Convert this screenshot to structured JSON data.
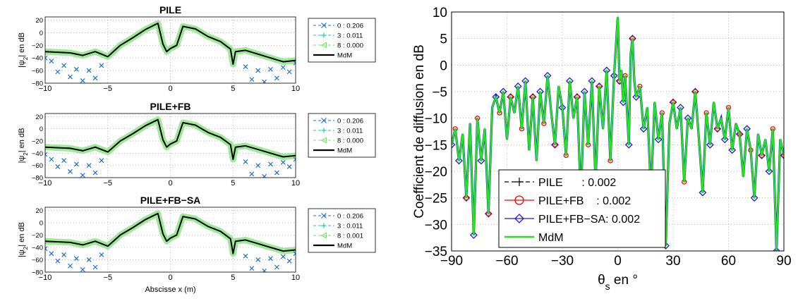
{
  "chart_data": [
    {
      "type": "line",
      "title": "PILE",
      "ylabel": "|ψ_2| en dB",
      "xlabel": "",
      "xlim": [
        -10,
        10
      ],
      "ylim": [
        -80,
        25
      ],
      "xticks": [
        "−10",
        "−5",
        "0",
        "5",
        "10"
      ],
      "yticks": [
        "20",
        "0",
        "−20",
        "−40",
        "−60",
        "−80"
      ],
      "grid": true,
      "legend": "outside-right",
      "series": [
        {
          "name": "0 : 0.206",
          "color": "#1f6fd6",
          "style": "dashed-x",
          "points": [
            [
              -10,
              -40
            ],
            [
              -9.5,
              -45
            ],
            [
              -9,
              -62
            ],
            [
              -8.5,
              -52
            ],
            [
              -8,
              -70
            ],
            [
              -7.5,
              -58
            ],
            [
              -7,
              -76
            ],
            [
              -6.5,
              -60
            ],
            [
              -6,
              -72
            ],
            [
              -5.5,
              -52
            ],
            [
              6,
              -54
            ],
            [
              6.5,
              -74
            ],
            [
              7,
              -60
            ],
            [
              7.5,
              -78
            ],
            [
              8,
              -58
            ],
            [
              8.5,
              -72
            ],
            [
              9,
              -55
            ],
            [
              9.5,
              -62
            ],
            [
              10,
              -48
            ]
          ]
        },
        {
          "name": "3 : 0.011",
          "color": "#19c7c9",
          "style": "dashed-plus",
          "points": []
        },
        {
          "name": "8 : 0.000",
          "color": "#7fdc7a",
          "style": "dashed-triangle",
          "points": []
        },
        {
          "name": "MdM",
          "color": "#000000",
          "style": "solid",
          "points": [
            [
              -10,
              -30
            ],
            [
              -8,
              -32
            ],
            [
              -7,
              -36
            ],
            [
              -6,
              -30
            ],
            [
              -5,
              -38
            ],
            [
              -4,
              -20
            ],
            [
              -3,
              -8
            ],
            [
              -2,
              5
            ],
            [
              -1,
              15
            ],
            [
              -0.6,
              -18
            ],
            [
              -0.3,
              -30
            ],
            [
              0,
              -25
            ],
            [
              0.5,
              -20
            ],
            [
              0.8,
              -2
            ],
            [
              1,
              10
            ],
            [
              2,
              6
            ],
            [
              3,
              -6
            ],
            [
              4,
              -14
            ],
            [
              4.8,
              -26
            ],
            [
              5,
              -50
            ],
            [
              5.2,
              -30
            ],
            [
              6,
              -28
            ],
            [
              7,
              -34
            ],
            [
              8,
              -40
            ],
            [
              9,
              -46
            ],
            [
              10,
              -44
            ]
          ]
        }
      ]
    },
    {
      "type": "line",
      "title": "PILE+FB",
      "ylabel": "|ψ_2| en dB",
      "xlabel": "",
      "xlim": [
        -10,
        10
      ],
      "ylim": [
        -80,
        25
      ],
      "xticks": [
        "−10",
        "−5",
        "0",
        "5",
        "10"
      ],
      "yticks": [
        "20",
        "0",
        "−20",
        "−40",
        "−60",
        "−80"
      ],
      "grid": true,
      "legend": "outside-right",
      "series": [
        {
          "name": "0 : 0.206",
          "color": "#1f6fd6",
          "style": "dashed-x",
          "points": [
            [
              -10,
              -42
            ],
            [
              -9.5,
              -50
            ],
            [
              -9,
              -62
            ],
            [
              -8.5,
              -52
            ],
            [
              -8,
              -70
            ],
            [
              -7.5,
              -58
            ],
            [
              -7,
              -76
            ],
            [
              -6.5,
              -60
            ],
            [
              -6,
              -72
            ],
            [
              -5.5,
              -52
            ],
            [
              6,
              -54
            ],
            [
              6.5,
              -74
            ],
            [
              7,
              -60
            ],
            [
              7.5,
              -78
            ],
            [
              8,
              -58
            ],
            [
              8.5,
              -72
            ],
            [
              9,
              -55
            ],
            [
              9.5,
              -62
            ],
            [
              10,
              -50
            ]
          ]
        },
        {
          "name": "3 : 0.011",
          "color": "#19c7c9",
          "style": "dashed-plus",
          "points": []
        },
        {
          "name": "8 : 0.000",
          "color": "#7fdc7a",
          "style": "dashed-triangle",
          "points": []
        },
        {
          "name": "MdM",
          "color": "#000000",
          "style": "solid",
          "points": [
            [
              -10,
              -30
            ],
            [
              -8,
              -32
            ],
            [
              -7,
              -36
            ],
            [
              -6,
              -30
            ],
            [
              -5,
              -38
            ],
            [
              -4,
              -20
            ],
            [
              -3,
              -8
            ],
            [
              -2,
              5
            ],
            [
              -1,
              15
            ],
            [
              -0.6,
              -18
            ],
            [
              -0.3,
              -30
            ],
            [
              0,
              -25
            ],
            [
              0.5,
              -20
            ],
            [
              0.8,
              -2
            ],
            [
              1,
              10
            ],
            [
              2,
              6
            ],
            [
              3,
              -6
            ],
            [
              4,
              -14
            ],
            [
              4.8,
              -26
            ],
            [
              5,
              -50
            ],
            [
              5.2,
              -30
            ],
            [
              6,
              -28
            ],
            [
              7,
              -34
            ],
            [
              8,
              -40
            ],
            [
              9,
              -46
            ],
            [
              10,
              -44
            ]
          ]
        }
      ]
    },
    {
      "type": "line",
      "title": "PILE+FB−SA",
      "ylabel": "|ψ_2| en dB",
      "xlabel": "Abscisse x (m)",
      "xlim": [
        -10,
        10
      ],
      "ylim": [
        -80,
        25
      ],
      "xticks": [
        "−10",
        "−5",
        "0",
        "5",
        "10"
      ],
      "yticks": [
        "20",
        "0",
        "−20",
        "−40",
        "−60",
        "−80"
      ],
      "grid": true,
      "legend": "outside-right",
      "series": [
        {
          "name": "0 : 0.206",
          "color": "#1f6fd6",
          "style": "dashed-x",
          "points": [
            [
              -10,
              -42
            ],
            [
              -9.5,
              -50
            ],
            [
              -9,
              -62
            ],
            [
              -8.5,
              -52
            ],
            [
              -8,
              -70
            ],
            [
              -7.5,
              -58
            ],
            [
              -7,
              -76
            ],
            [
              -6.5,
              -60
            ],
            [
              -6,
              -72
            ],
            [
              -5.5,
              -52
            ],
            [
              6,
              -54
            ],
            [
              6.5,
              -74
            ],
            [
              7,
              -60
            ],
            [
              7.5,
              -78
            ],
            [
              8,
              -58
            ],
            [
              8.5,
              -72
            ],
            [
              9,
              -55
            ],
            [
              9.5,
              -62
            ],
            [
              10,
              -50
            ]
          ]
        },
        {
          "name": "3 : 0.011",
          "color": "#19c7c9",
          "style": "dashed-plus",
          "points": []
        },
        {
          "name": "8 : 0.001",
          "color": "#7fdc7a",
          "style": "dashed-triangle",
          "points": []
        },
        {
          "name": "MdM",
          "color": "#000000",
          "style": "solid",
          "points": [
            [
              -10,
              -30
            ],
            [
              -8,
              -32
            ],
            [
              -7,
              -36
            ],
            [
              -6,
              -30
            ],
            [
              -5,
              -38
            ],
            [
              -4,
              -20
            ],
            [
              -3,
              -8
            ],
            [
              -2,
              5
            ],
            [
              -1,
              15
            ],
            [
              -0.6,
              -18
            ],
            [
              -0.3,
              -30
            ],
            [
              0,
              -25
            ],
            [
              0.5,
              -20
            ],
            [
              0.8,
              -2
            ],
            [
              1,
              10
            ],
            [
              2,
              6
            ],
            [
              3,
              -6
            ],
            [
              4,
              -14
            ],
            [
              4.8,
              -26
            ],
            [
              5,
              -50
            ],
            [
              5.2,
              -30
            ],
            [
              6,
              -28
            ],
            [
              7,
              -34
            ],
            [
              8,
              -40
            ],
            [
              9,
              -46
            ],
            [
              10,
              -44
            ]
          ]
        }
      ]
    },
    {
      "type": "line",
      "title": "",
      "ylabel": "Coefficient de diffusion en dB",
      "xlabel": "θ_s en °",
      "xlim": [
        -90,
        90
      ],
      "ylim": [
        -35,
        10
      ],
      "xticks": [
        "−90",
        "−60",
        "−30",
        "0",
        "30",
        "60",
        "90"
      ],
      "yticks": [
        "10",
        "5",
        "0",
        "−5",
        "−10",
        "−15",
        "−20",
        "−25",
        "−30",
        "−35"
      ],
      "grid": true,
      "legend": "bottom-center",
      "series": [
        {
          "name": "PILE      : 0.002",
          "color": "#000000",
          "style": "dashed-plus",
          "points": []
        },
        {
          "name": "PILE+FB    : 0.002",
          "color": "#ff0000",
          "style": "solid-circle",
          "points": []
        },
        {
          "name": "PILE+FB−SA: 0.002",
          "color": "#1a1adb",
          "style": "solid-diamond",
          "points": []
        },
        {
          "name": "MdM",
          "color": "#22e61a",
          "style": "solid",
          "points": [
            [
              -90,
              -15
            ],
            [
              -88,
              -12
            ],
            [
              -86,
              -18
            ],
            [
              -84,
              -13
            ],
            [
              -82,
              -25
            ],
            [
              -80,
              -11
            ],
            [
              -78,
              -32
            ],
            [
              -76,
              -10
            ],
            [
              -74,
              -18
            ],
            [
              -72,
              -12
            ],
            [
              -70,
              -28
            ],
            [
              -68,
              -8
            ],
            [
              -66,
              -6
            ],
            [
              -64,
              -9
            ],
            [
              -62,
              -5
            ],
            [
              -60,
              -14
            ],
            [
              -58,
              -6
            ],
            [
              -56,
              -9
            ],
            [
              -54,
              -4
            ],
            [
              -52,
              -12
            ],
            [
              -50,
              -3
            ],
            [
              -48,
              -16
            ],
            [
              -46,
              -6
            ],
            [
              -44,
              -18
            ],
            [
              -42,
              -5
            ],
            [
              -40,
              -11
            ],
            [
              -38,
              -2
            ],
            [
              -36,
              -9
            ],
            [
              -34,
              -15
            ],
            [
              -32,
              -4
            ],
            [
              -30,
              -8
            ],
            [
              -28,
              -17
            ],
            [
              -26,
              -3
            ],
            [
              -24,
              -10
            ],
            [
              -22,
              -6
            ],
            [
              -20,
              -25
            ],
            [
              -18,
              -5
            ],
            [
              -16,
              -15
            ],
            [
              -14,
              -3
            ],
            [
              -12,
              -22
            ],
            [
              -10,
              -4
            ],
            [
              -8,
              -12
            ],
            [
              -6,
              -1
            ],
            [
              -4,
              -18
            ],
            [
              -2,
              -2
            ],
            [
              0,
              9
            ],
            [
              1,
              -3
            ],
            [
              2,
              -1
            ],
            [
              3,
              -7
            ],
            [
              4,
              -2
            ],
            [
              6,
              -15
            ],
            [
              7,
              2
            ],
            [
              8,
              5
            ],
            [
              9,
              -3
            ],
            [
              10,
              -6
            ],
            [
              12,
              -4
            ],
            [
              14,
              -12
            ],
            [
              16,
              -8
            ],
            [
              18,
              -24
            ],
            [
              20,
              -7
            ],
            [
              22,
              -14
            ],
            [
              24,
              -9
            ],
            [
              26,
              -34
            ],
            [
              28,
              -11
            ],
            [
              30,
              -7
            ],
            [
              32,
              -12
            ],
            [
              34,
              -8
            ],
            [
              36,
              -22
            ],
            [
              38,
              -10
            ],
            [
              40,
              -12
            ],
            [
              42,
              -5
            ],
            [
              44,
              -14
            ],
            [
              46,
              -24
            ],
            [
              48,
              -9
            ],
            [
              50,
              -15
            ],
            [
              52,
              -7
            ],
            [
              54,
              -12
            ],
            [
              56,
              -10
            ],
            [
              58,
              -14
            ],
            [
              60,
              -8
            ],
            [
              62,
              -16
            ],
            [
              64,
              -11
            ],
            [
              66,
              -13
            ],
            [
              68,
              -21
            ],
            [
              70,
              -12
            ],
            [
              72,
              -16
            ],
            [
              74,
              -25
            ],
            [
              76,
              -13
            ],
            [
              78,
              -17
            ],
            [
              80,
              -14
            ],
            [
              82,
              -20
            ],
            [
              84,
              -12
            ],
            [
              86,
              -35
            ],
            [
              88,
              -14
            ],
            [
              90,
              -17
            ]
          ]
        }
      ]
    }
  ]
}
